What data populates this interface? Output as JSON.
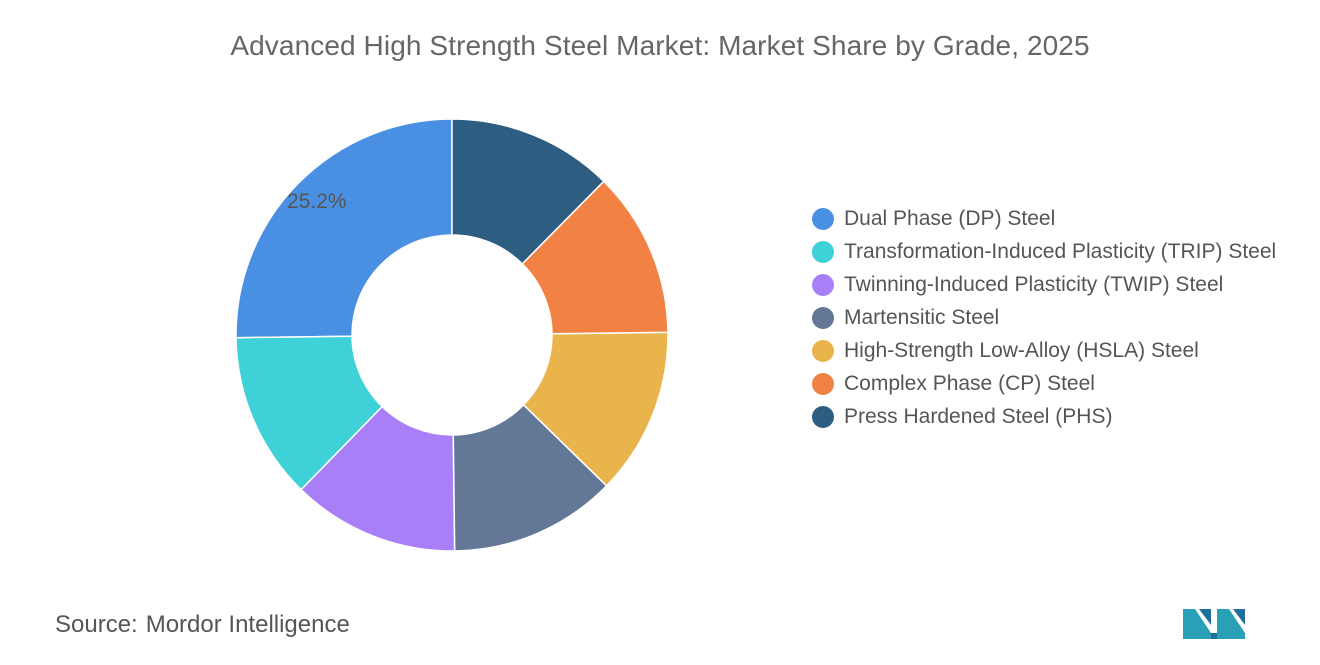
{
  "chart_data": {
    "type": "pie",
    "title": "Advanced High Strength Steel Market: Market Share by Grade, 2025",
    "donut": true,
    "series": [
      {
        "name": "Dual Phase (DP) Steel",
        "value": 25.2,
        "color": "#4a90e2",
        "label": "25.2%"
      },
      {
        "name": "Transformation-Induced Plasticity (TRIP) Steel",
        "value": 12.5,
        "color": "#3fd1d8",
        "label": ""
      },
      {
        "name": "Twinning-Induced Plasticity (TWIP) Steel",
        "value": 12.5,
        "color": "#a97ff7",
        "label": ""
      },
      {
        "name": "Martensitic Steel",
        "value": 12.5,
        "color": "#637896",
        "label": ""
      },
      {
        "name": "High-Strength Low-Alloy (HSLA) Steel",
        "value": 12.5,
        "color": "#e9b44c",
        "label": ""
      },
      {
        "name": "Complex Phase (CP) Steel",
        "value": 12.4,
        "color": "#f28244",
        "label": ""
      },
      {
        "name": "Press Hardened Steel (PHS)",
        "value": 12.4,
        "color": "#2e5d82",
        "label": ""
      }
    ],
    "legend_position": "right"
  },
  "source": {
    "label": "Source:",
    "value": "Mordor Intelligence"
  },
  "logo_icon": "mordor-intelligence-logo-icon"
}
